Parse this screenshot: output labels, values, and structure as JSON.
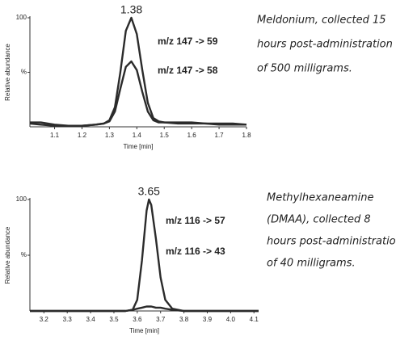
{
  "chart_data": [
    {
      "type": "line",
      "xlabel": "Time [min]",
      "ylabel": "Relative abundance",
      "xlim": [
        1.01,
        1.8
      ],
      "xticks": [
        1.1,
        1.2,
        1.3,
        1.4,
        1.5,
        1.6,
        1.7,
        1.8
      ],
      "ylim": [
        0,
        100
      ],
      "yticks": [
        100,
        {
          "value": 50,
          "label": "%"
        }
      ],
      "x": [
        1.01,
        1.05,
        1.1,
        1.15,
        1.2,
        1.25,
        1.28,
        1.3,
        1.32,
        1.34,
        1.36,
        1.38,
        1.4,
        1.42,
        1.44,
        1.46,
        1.48,
        1.5,
        1.55,
        1.6,
        1.65,
        1.7,
        1.75,
        1.8
      ],
      "series": [
        {
          "name": "m/z 147 -> 59",
          "color": "#2b2b2b",
          "values": [
            4,
            4,
            2,
            1,
            1,
            2,
            3,
            6,
            18,
            50,
            88,
            100,
            85,
            52,
            22,
            8,
            5,
            4,
            4,
            4,
            3,
            3,
            3,
            2
          ]
        },
        {
          "name": "m/z 147 -> 58",
          "color": "#2b2b2b",
          "values": [
            3,
            2,
            1,
            1,
            1,
            2,
            3,
            5,
            14,
            35,
            55,
            60,
            52,
            32,
            14,
            6,
            4,
            4,
            3,
            3,
            3,
            2,
            2,
            2
          ]
        }
      ],
      "annotations": [
        {
          "text": "1.38",
          "x": 1.38
        }
      ],
      "note": [
        "Meldonium, collected 15",
        "hours post-administration",
        "of 500 milligrams."
      ]
    },
    {
      "type": "line",
      "xlabel": "Time [min]",
      "ylabel": "Relative abundance",
      "xlim": [
        3.14,
        4.12
      ],
      "xticks": [
        3.2,
        3.3,
        3.4,
        3.5,
        3.6,
        3.7,
        3.8,
        3.9,
        {
          "value": 4.0,
          "label": "4.0"
        },
        4.1
      ],
      "ylim": [
        0,
        100
      ],
      "yticks": [
        100,
        {
          "value": 50,
          "label": "%"
        }
      ],
      "x": [
        3.14,
        3.2,
        3.3,
        3.4,
        3.5,
        3.55,
        3.58,
        3.6,
        3.62,
        3.64,
        3.65,
        3.66,
        3.68,
        3.7,
        3.72,
        3.75,
        3.8,
        3.9,
        4.0,
        4.1,
        4.12
      ],
      "series": [
        {
          "name": "m/z 116 -> 57",
          "color": "#2b2b2b",
          "values": [
            0,
            0,
            0,
            0,
            0,
            0,
            1,
            10,
            45,
            90,
            100,
            95,
            65,
            30,
            10,
            2,
            0,
            0,
            0,
            0,
            0
          ]
        },
        {
          "name": "m/z 116 -> 43",
          "color": "#2b2b2b",
          "values": [
            0,
            0,
            0,
            0,
            0,
            0,
            1,
            2,
            3,
            4,
            4,
            4,
            3,
            3,
            2,
            1,
            0,
            0,
            0,
            0,
            0
          ]
        }
      ],
      "annotations": [
        {
          "text": "3.65",
          "x": 3.65
        }
      ],
      "note": [
        "Methylhexaneamine",
        "(DMAA), collected 8",
        "hours post-administration",
        "of 40 milligrams."
      ]
    }
  ]
}
